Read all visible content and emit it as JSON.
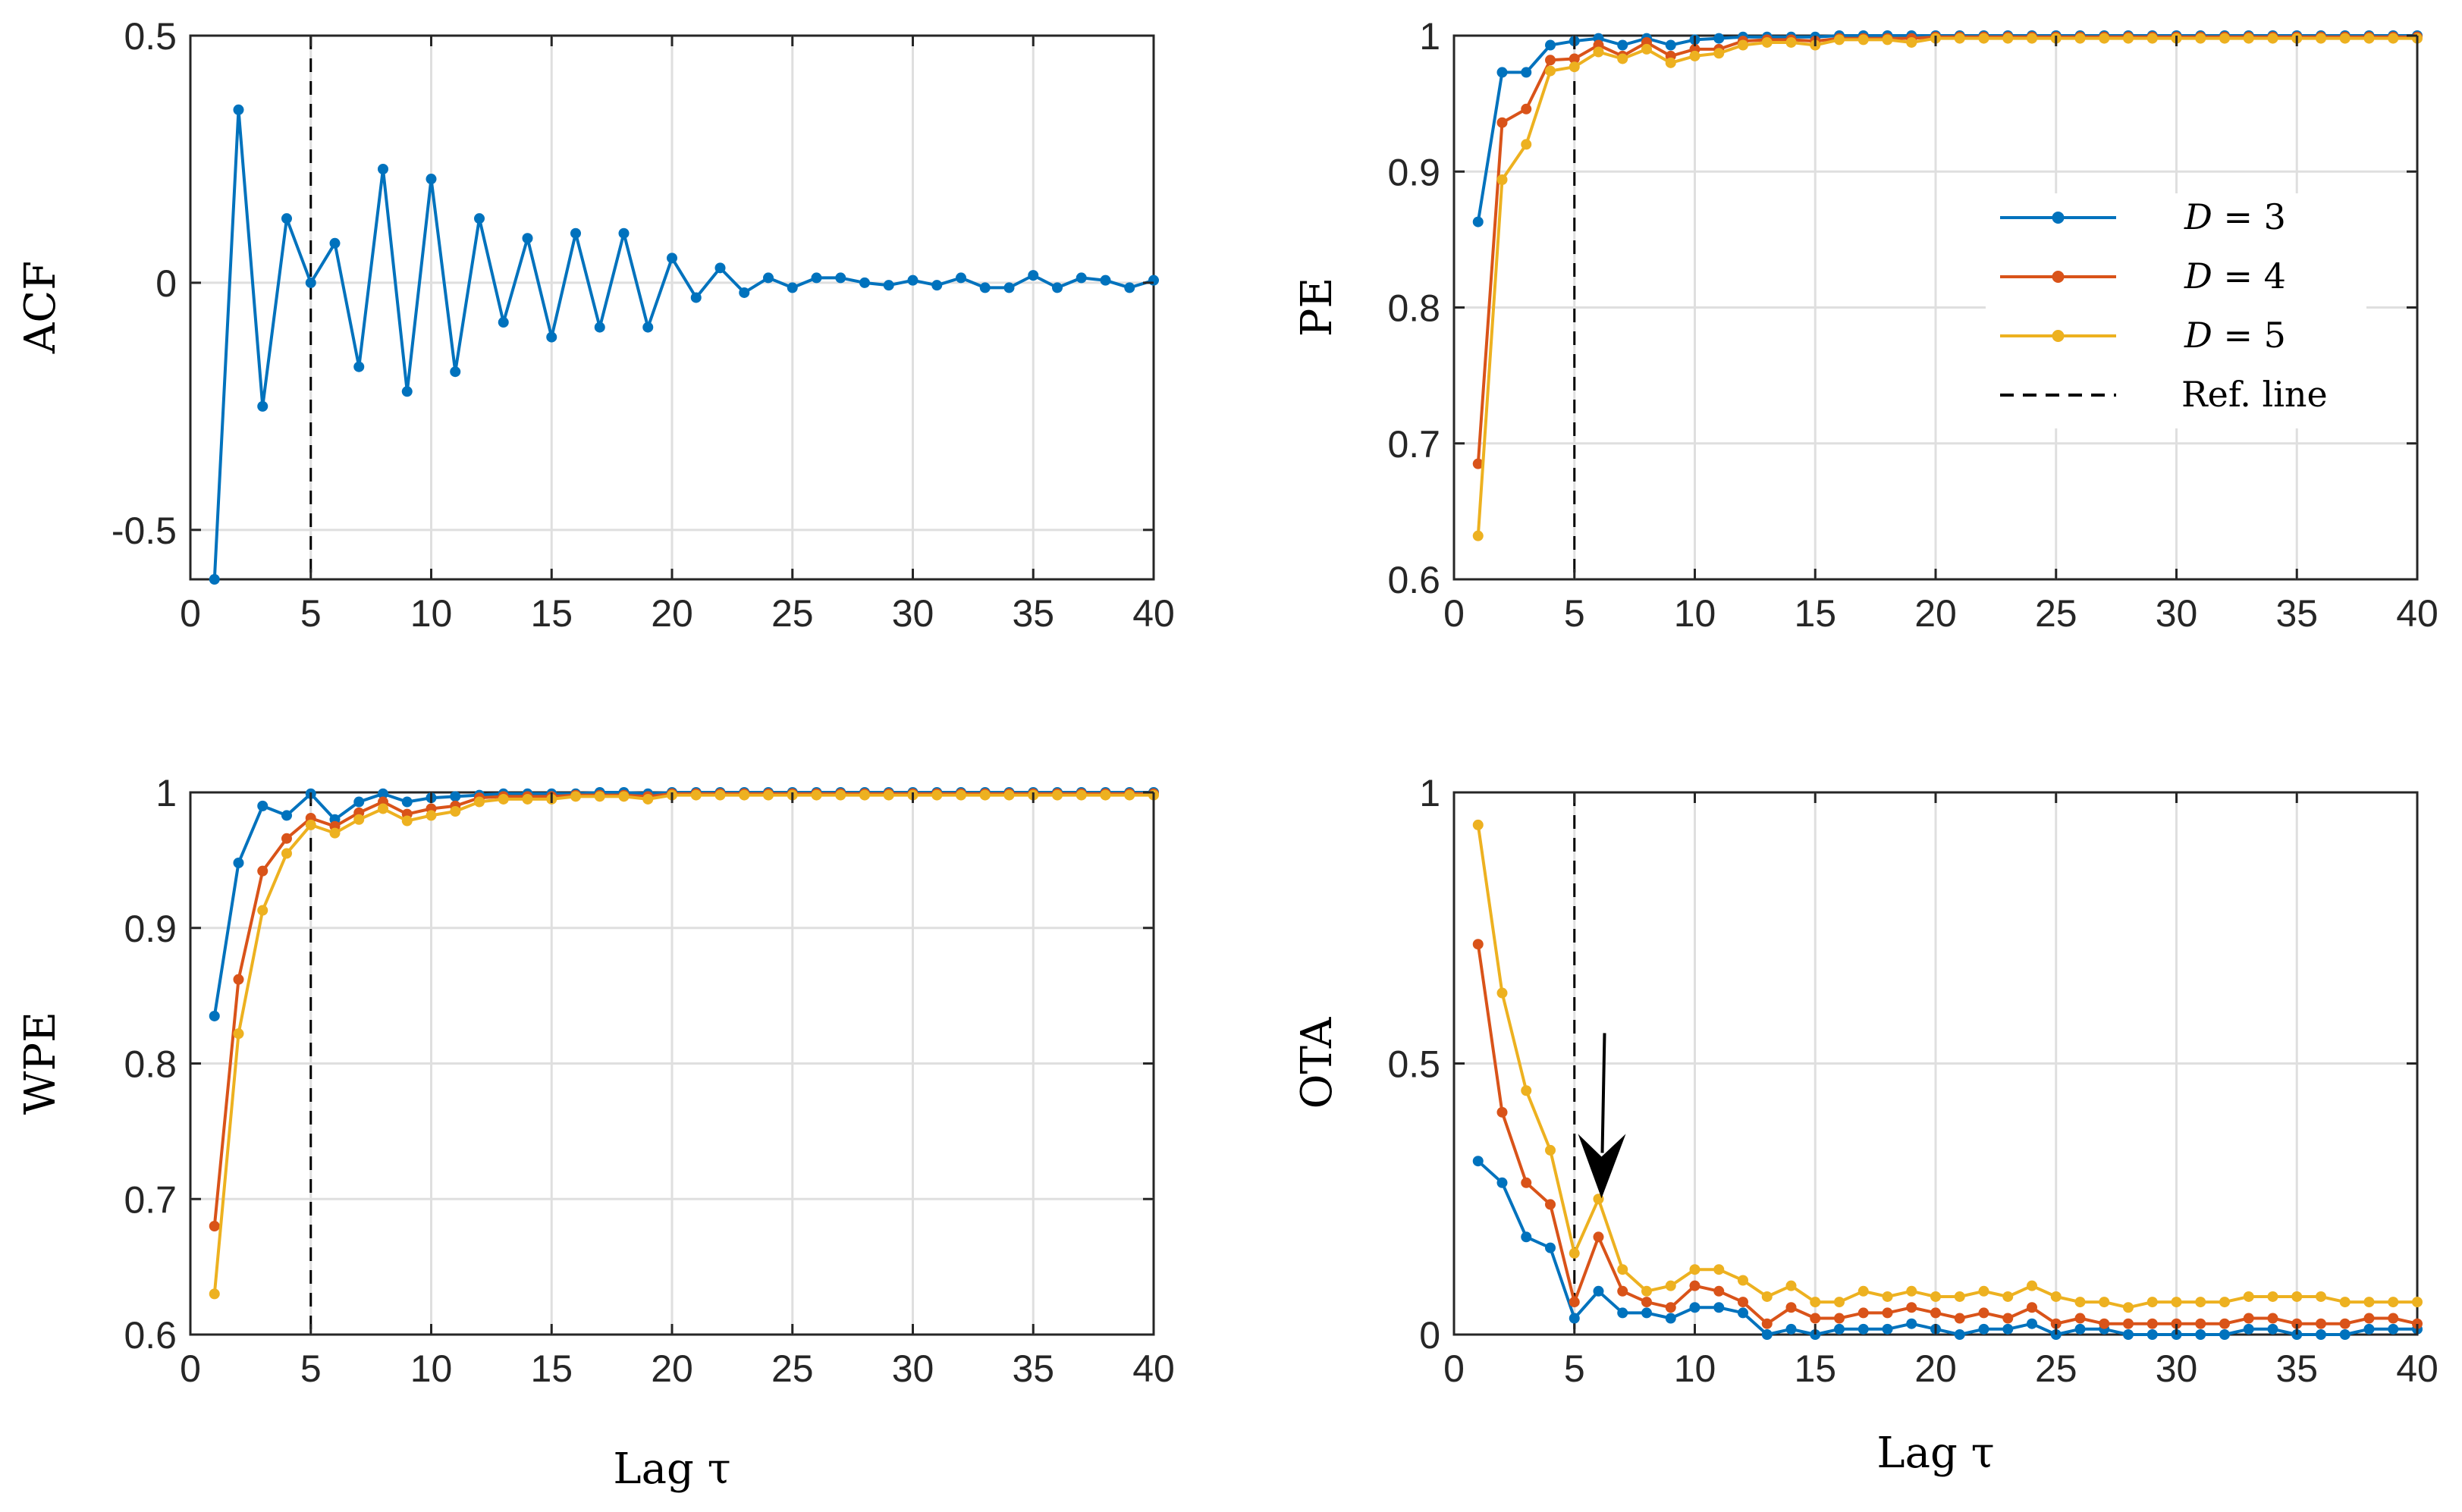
{
  "chart_data": [
    {
      "type": "line",
      "id": "acf",
      "ylabel": "ACF",
      "xlabel": "",
      "xlim": [
        0,
        40
      ],
      "ylim": [
        -0.6,
        0.5
      ],
      "xticks": [
        0,
        5,
        10,
        15,
        20,
        25,
        30,
        35,
        40
      ],
      "yticks": [
        -0.5,
        0,
        0.5
      ],
      "ytick_labels": [
        "-0.5",
        "0",
        "0.5"
      ],
      "grid": true,
      "ref_line_x": 5,
      "x": [
        1,
        2,
        3,
        4,
        5,
        6,
        7,
        8,
        9,
        10,
        11,
        12,
        13,
        14,
        15,
        16,
        17,
        18,
        19,
        20,
        21,
        22,
        23,
        24,
        25,
        26,
        27,
        28,
        29,
        30,
        31,
        32,
        33,
        34,
        35,
        36,
        37,
        38,
        39,
        40
      ],
      "series": [
        {
          "name": "ACF",
          "color": "#0072BD",
          "values": [
            -0.6,
            0.35,
            -0.25,
            0.13,
            0.0,
            0.08,
            -0.17,
            0.23,
            -0.22,
            0.21,
            -0.18,
            0.13,
            -0.08,
            0.09,
            -0.11,
            0.1,
            -0.09,
            0.1,
            -0.09,
            0.05,
            -0.03,
            0.03,
            -0.02,
            0.01,
            -0.01,
            0.01,
            0.01,
            0.0,
            -0.005,
            0.005,
            -0.005,
            0.01,
            -0.01,
            -0.01,
            0.015,
            -0.01,
            0.01,
            0.005,
            -0.01,
            0.005
          ]
        }
      ]
    },
    {
      "type": "line",
      "id": "pe",
      "ylabel": "PE",
      "xlabel": "",
      "xlim": [
        0,
        40
      ],
      "ylim": [
        0.6,
        1.0
      ],
      "xticks": [
        0,
        5,
        10,
        15,
        20,
        25,
        30,
        35,
        40
      ],
      "yticks": [
        0.6,
        0.7,
        0.8,
        0.9,
        1.0
      ],
      "ytick_labels": [
        "0.6",
        "0.7",
        "0.8",
        "0.9",
        "1"
      ],
      "grid": true,
      "ref_line_x": 5,
      "x": [
        1,
        2,
        3,
        4,
        5,
        6,
        7,
        8,
        9,
        10,
        11,
        12,
        13,
        14,
        15,
        16,
        17,
        18,
        19,
        20,
        21,
        22,
        23,
        24,
        25,
        26,
        27,
        28,
        29,
        30,
        31,
        32,
        33,
        34,
        35,
        36,
        37,
        38,
        39,
        40
      ],
      "series": [
        {
          "name": "D = 3",
          "color": "#0072BD",
          "values": [
            0.863,
            0.973,
            0.973,
            0.993,
            0.996,
            0.998,
            0.993,
            0.998,
            0.993,
            0.997,
            0.998,
            0.999,
            0.999,
            0.999,
            0.999,
            1.0,
            1.0,
            1.0,
            1.0,
            1.0,
            1.0,
            1.0,
            1.0,
            1.0,
            1.0,
            1.0,
            1.0,
            1.0,
            1.0,
            1.0,
            1.0,
            1.0,
            1.0,
            1.0,
            1.0,
            1.0,
            1.0,
            1.0,
            1.0,
            1.0
          ]
        },
        {
          "name": "D = 4",
          "color": "#D95319",
          "values": [
            0.685,
            0.936,
            0.946,
            0.982,
            0.983,
            0.993,
            0.985,
            0.995,
            0.985,
            0.99,
            0.99,
            0.996,
            0.997,
            0.997,
            0.996,
            0.998,
            0.998,
            0.998,
            0.998,
            0.999,
            0.999,
            0.999,
            0.999,
            0.999,
            0.999,
            0.999,
            0.999,
            0.999,
            0.999,
            0.999,
            0.999,
            0.999,
            0.999,
            0.999,
            0.999,
            0.999,
            0.999,
            0.999,
            0.999,
            0.999
          ]
        },
        {
          "name": "D = 5",
          "color": "#EDB120",
          "values": [
            0.632,
            0.894,
            0.92,
            0.974,
            0.977,
            0.988,
            0.983,
            0.99,
            0.98,
            0.985,
            0.987,
            0.993,
            0.995,
            0.995,
            0.993,
            0.997,
            0.997,
            0.997,
            0.995,
            0.998,
            0.998,
            0.998,
            0.998,
            0.998,
            0.998,
            0.998,
            0.998,
            0.998,
            0.998,
            0.998,
            0.998,
            0.998,
            0.998,
            0.998,
            0.998,
            0.998,
            0.998,
            0.998,
            0.998,
            0.998
          ]
        }
      ],
      "legend": {
        "position": "right",
        "entries": [
          {
            "label_var": "D",
            "label_rest": " = 3",
            "color": "#0072BD",
            "style": "line-marker"
          },
          {
            "label_var": "D",
            "label_rest": " = 4",
            "color": "#D95319",
            "style": "line-marker"
          },
          {
            "label_var": "D",
            "label_rest": " = 5",
            "color": "#EDB120",
            "style": "line-marker"
          },
          {
            "label_var": "",
            "label_rest": "Ref. line",
            "color": "#000000",
            "style": "dashed"
          }
        ]
      }
    },
    {
      "type": "line",
      "id": "wpe",
      "ylabel": "WPE",
      "xlabel": "Lag τ",
      "xlim": [
        0,
        40
      ],
      "ylim": [
        0.6,
        1.0
      ],
      "xticks": [
        0,
        5,
        10,
        15,
        20,
        25,
        30,
        35,
        40
      ],
      "yticks": [
        0.6,
        0.7,
        0.8,
        0.9,
        1.0
      ],
      "ytick_labels": [
        "0.6",
        "0.7",
        "0.8",
        "0.9",
        "1"
      ],
      "grid": true,
      "ref_line_x": 5,
      "x": [
        1,
        2,
        3,
        4,
        5,
        6,
        7,
        8,
        9,
        10,
        11,
        12,
        13,
        14,
        15,
        16,
        17,
        18,
        19,
        20,
        21,
        22,
        23,
        24,
        25,
        26,
        27,
        28,
        29,
        30,
        31,
        32,
        33,
        34,
        35,
        36,
        37,
        38,
        39,
        40
      ],
      "series": [
        {
          "name": "D = 3",
          "color": "#0072BD",
          "values": [
            0.835,
            0.948,
            0.99,
            0.983,
            0.999,
            0.98,
            0.993,
            0.999,
            0.993,
            0.996,
            0.997,
            0.998,
            0.999,
            0.999,
            0.999,
            0.999,
            1.0,
            1.0,
            0.999,
            1.0,
            1.0,
            1.0,
            1.0,
            1.0,
            1.0,
            1.0,
            1.0,
            1.0,
            1.0,
            1.0,
            1.0,
            1.0,
            1.0,
            1.0,
            1.0,
            1.0,
            1.0,
            1.0,
            1.0,
            1.0
          ]
        },
        {
          "name": "D = 4",
          "color": "#D95319",
          "values": [
            0.68,
            0.862,
            0.942,
            0.966,
            0.981,
            0.975,
            0.985,
            0.993,
            0.984,
            0.988,
            0.99,
            0.996,
            0.997,
            0.997,
            0.997,
            0.998,
            0.998,
            0.998,
            0.997,
            0.999,
            0.999,
            0.999,
            0.999,
            0.999,
            0.999,
            0.999,
            0.999,
            0.999,
            0.999,
            0.999,
            0.999,
            0.999,
            0.999,
            0.999,
            0.999,
            0.999,
            0.999,
            0.999,
            0.999,
            0.999
          ]
        },
        {
          "name": "D = 5",
          "color": "#EDB120",
          "values": [
            0.63,
            0.822,
            0.913,
            0.955,
            0.976,
            0.97,
            0.98,
            0.988,
            0.979,
            0.983,
            0.986,
            0.993,
            0.995,
            0.995,
            0.995,
            0.997,
            0.997,
            0.997,
            0.995,
            0.998,
            0.998,
            0.998,
            0.998,
            0.998,
            0.998,
            0.998,
            0.998,
            0.998,
            0.998,
            0.998,
            0.998,
            0.998,
            0.998,
            0.998,
            0.998,
            0.998,
            0.998,
            0.998,
            0.998,
            0.998
          ]
        }
      ]
    },
    {
      "type": "line",
      "id": "ota",
      "ylabel": "OTA",
      "xlabel": "Lag τ",
      "xlim": [
        0,
        40
      ],
      "ylim": [
        0,
        1
      ],
      "xticks": [
        0,
        5,
        10,
        15,
        20,
        25,
        30,
        35,
        40
      ],
      "yticks": [
        0,
        0.5,
        1
      ],
      "ytick_labels": [
        "0",
        "0.5",
        "1"
      ],
      "grid": true,
      "ref_line_x": 5,
      "annotation": {
        "type": "arrow",
        "target_x": 6,
        "target_y": 0.24
      },
      "x": [
        1,
        2,
        3,
        4,
        5,
        6,
        7,
        8,
        9,
        10,
        11,
        12,
        13,
        14,
        15,
        16,
        17,
        18,
        19,
        20,
        21,
        22,
        23,
        24,
        25,
        26,
        27,
        28,
        29,
        30,
        31,
        32,
        33,
        34,
        35,
        36,
        37,
        38,
        39,
        40
      ],
      "series": [
        {
          "name": "D = 3",
          "color": "#0072BD",
          "values": [
            0.32,
            0.28,
            0.18,
            0.16,
            0.03,
            0.08,
            0.04,
            0.04,
            0.03,
            0.05,
            0.05,
            0.04,
            0.0,
            0.01,
            0.0,
            0.01,
            0.01,
            0.01,
            0.02,
            0.01,
            0.0,
            0.01,
            0.01,
            0.02,
            0.0,
            0.01,
            0.01,
            0.0,
            0.0,
            0.0,
            0.0,
            0.0,
            0.01,
            0.01,
            0.0,
            0.0,
            0.0,
            0.01,
            0.01,
            0.01
          ]
        },
        {
          "name": "D = 4",
          "color": "#D95319",
          "values": [
            0.72,
            0.41,
            0.28,
            0.24,
            0.06,
            0.18,
            0.08,
            0.06,
            0.05,
            0.09,
            0.08,
            0.06,
            0.02,
            0.05,
            0.03,
            0.03,
            0.04,
            0.04,
            0.05,
            0.04,
            0.03,
            0.04,
            0.03,
            0.05,
            0.02,
            0.03,
            0.02,
            0.02,
            0.02,
            0.02,
            0.02,
            0.02,
            0.03,
            0.03,
            0.02,
            0.02,
            0.02,
            0.03,
            0.03,
            0.02
          ]
        },
        {
          "name": "D = 5",
          "color": "#EDB120",
          "values": [
            0.94,
            0.63,
            0.45,
            0.34,
            0.15,
            0.25,
            0.12,
            0.08,
            0.09,
            0.12,
            0.12,
            0.1,
            0.07,
            0.09,
            0.06,
            0.06,
            0.08,
            0.07,
            0.08,
            0.07,
            0.07,
            0.08,
            0.07,
            0.09,
            0.07,
            0.06,
            0.06,
            0.05,
            0.06,
            0.06,
            0.06,
            0.06,
            0.07,
            0.07,
            0.07,
            0.07,
            0.06,
            0.06,
            0.06,
            0.06
          ]
        }
      ]
    }
  ]
}
